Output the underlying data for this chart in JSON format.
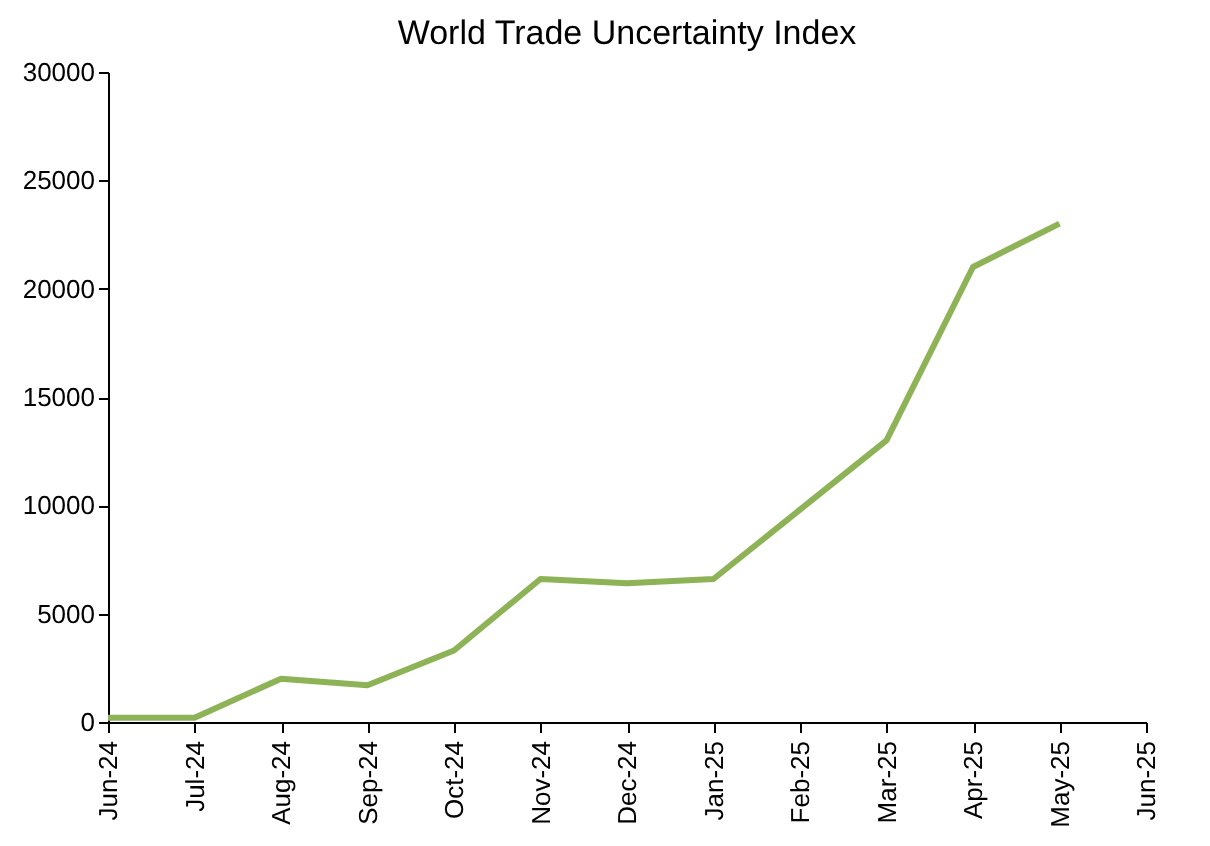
{
  "chart_data": {
    "type": "line",
    "title": "World Trade Uncertainty Index",
    "categories": [
      "Jun-24",
      "Jul-24",
      "Aug-24",
      "Sep-24",
      "Oct-24",
      "Nov-24",
      "Dec-24",
      "Jan-25",
      "Feb-25",
      "Mar-25",
      "Apr-25",
      "May-25",
      "Jun-25"
    ],
    "series": [
      {
        "color": "#8db356",
        "values": [
          200,
          200,
          2000,
          1700,
          3300,
          6600,
          6400,
          6600,
          9800,
          13000,
          21000,
          23000,
          null
        ]
      }
    ],
    "ylim": [
      0,
      30000
    ],
    "yticks": [
      0,
      5000,
      10000,
      15000,
      20000,
      25000,
      30000
    ],
    "grid": false,
    "legend": false,
    "marker": "none",
    "line_style": "solid"
  }
}
